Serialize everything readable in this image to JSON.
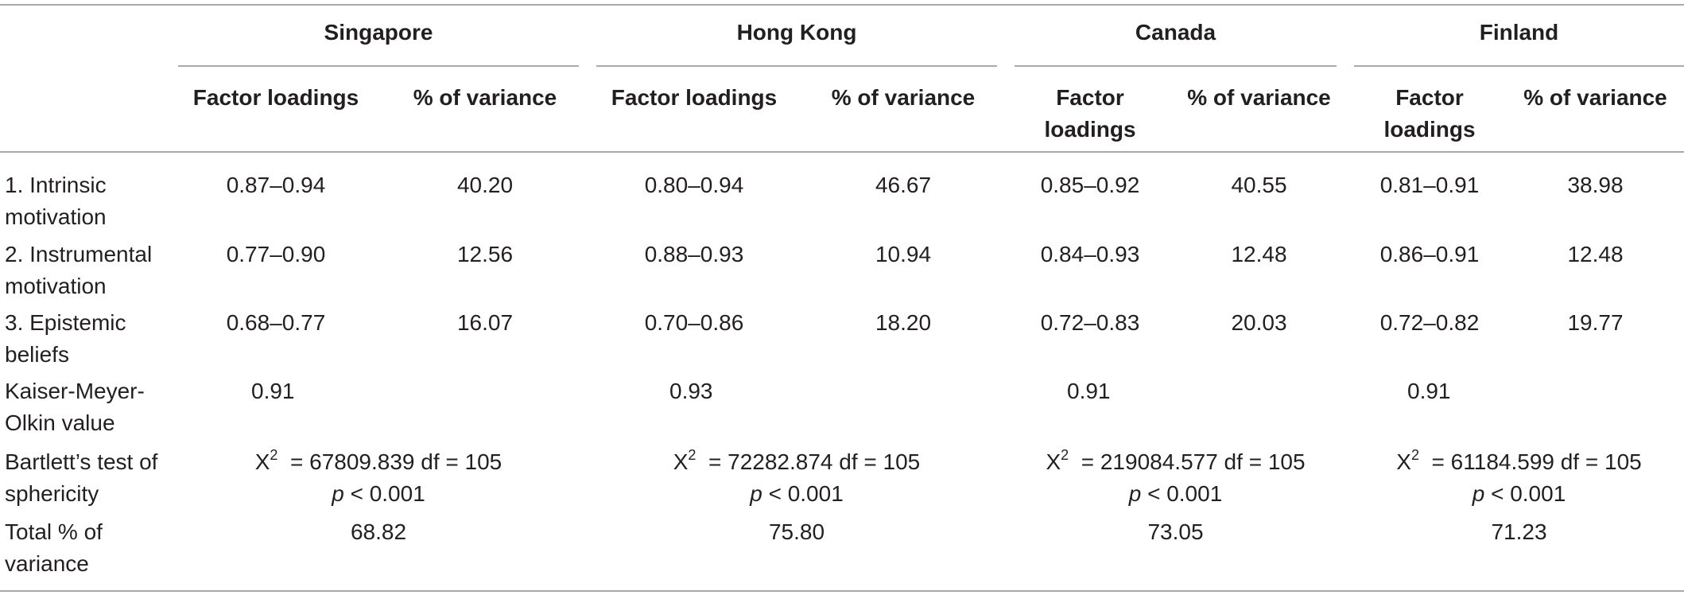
{
  "countries": [
    "Singapore",
    "Hong Kong",
    "Canada",
    "Finland"
  ],
  "sub_headers": {
    "factor_loadings": "Factor loadings",
    "factor_line1": "Factor",
    "factor_line2": "loadings",
    "variance": "% of variance"
  },
  "rows": [
    {
      "label1": "1. Intrinsic",
      "label2": "motivation",
      "cells": [
        "0.87–0.94",
        "40.20",
        "0.80–0.94",
        "46.67",
        "0.85–0.92",
        "40.55",
        "0.81–0.91",
        "38.98"
      ]
    },
    {
      "label1": "2. Instrumental",
      "label2": "motivation",
      "cells": [
        "0.77–0.90",
        "12.56",
        "0.88–0.93",
        "10.94",
        "0.84–0.93",
        "12.48",
        "0.86–0.91",
        "12.48"
      ]
    },
    {
      "label1": "3. Epistemic",
      "label2": "beliefs",
      "cells": [
        "0.68–0.77",
        "16.07",
        "0.70–0.86",
        "18.20",
        "0.72–0.83",
        "20.03",
        "0.72–0.82",
        "19.77"
      ]
    }
  ],
  "kmo": {
    "label1": "Kaiser-Meyer-",
    "label2": "Olkin value",
    "values": [
      "0.91",
      "0.93",
      "0.91",
      "0.91"
    ]
  },
  "bartlett": {
    "label1": "Bartlett’s test of",
    "label2": "sphericity",
    "x": "X",
    "sup": "2",
    "stats": [
      "= 67809.839 df = 105",
      "= 72282.874 df = 105",
      "= 219084.577 df = 105",
      "= 61184.599 df = 105"
    ],
    "p": "p",
    "p_value": "< 0.001"
  },
  "total": {
    "label1": "Total % of",
    "label2": "variance",
    "values": [
      "68.82",
      "75.80",
      "73.05",
      "71.23"
    ]
  }
}
